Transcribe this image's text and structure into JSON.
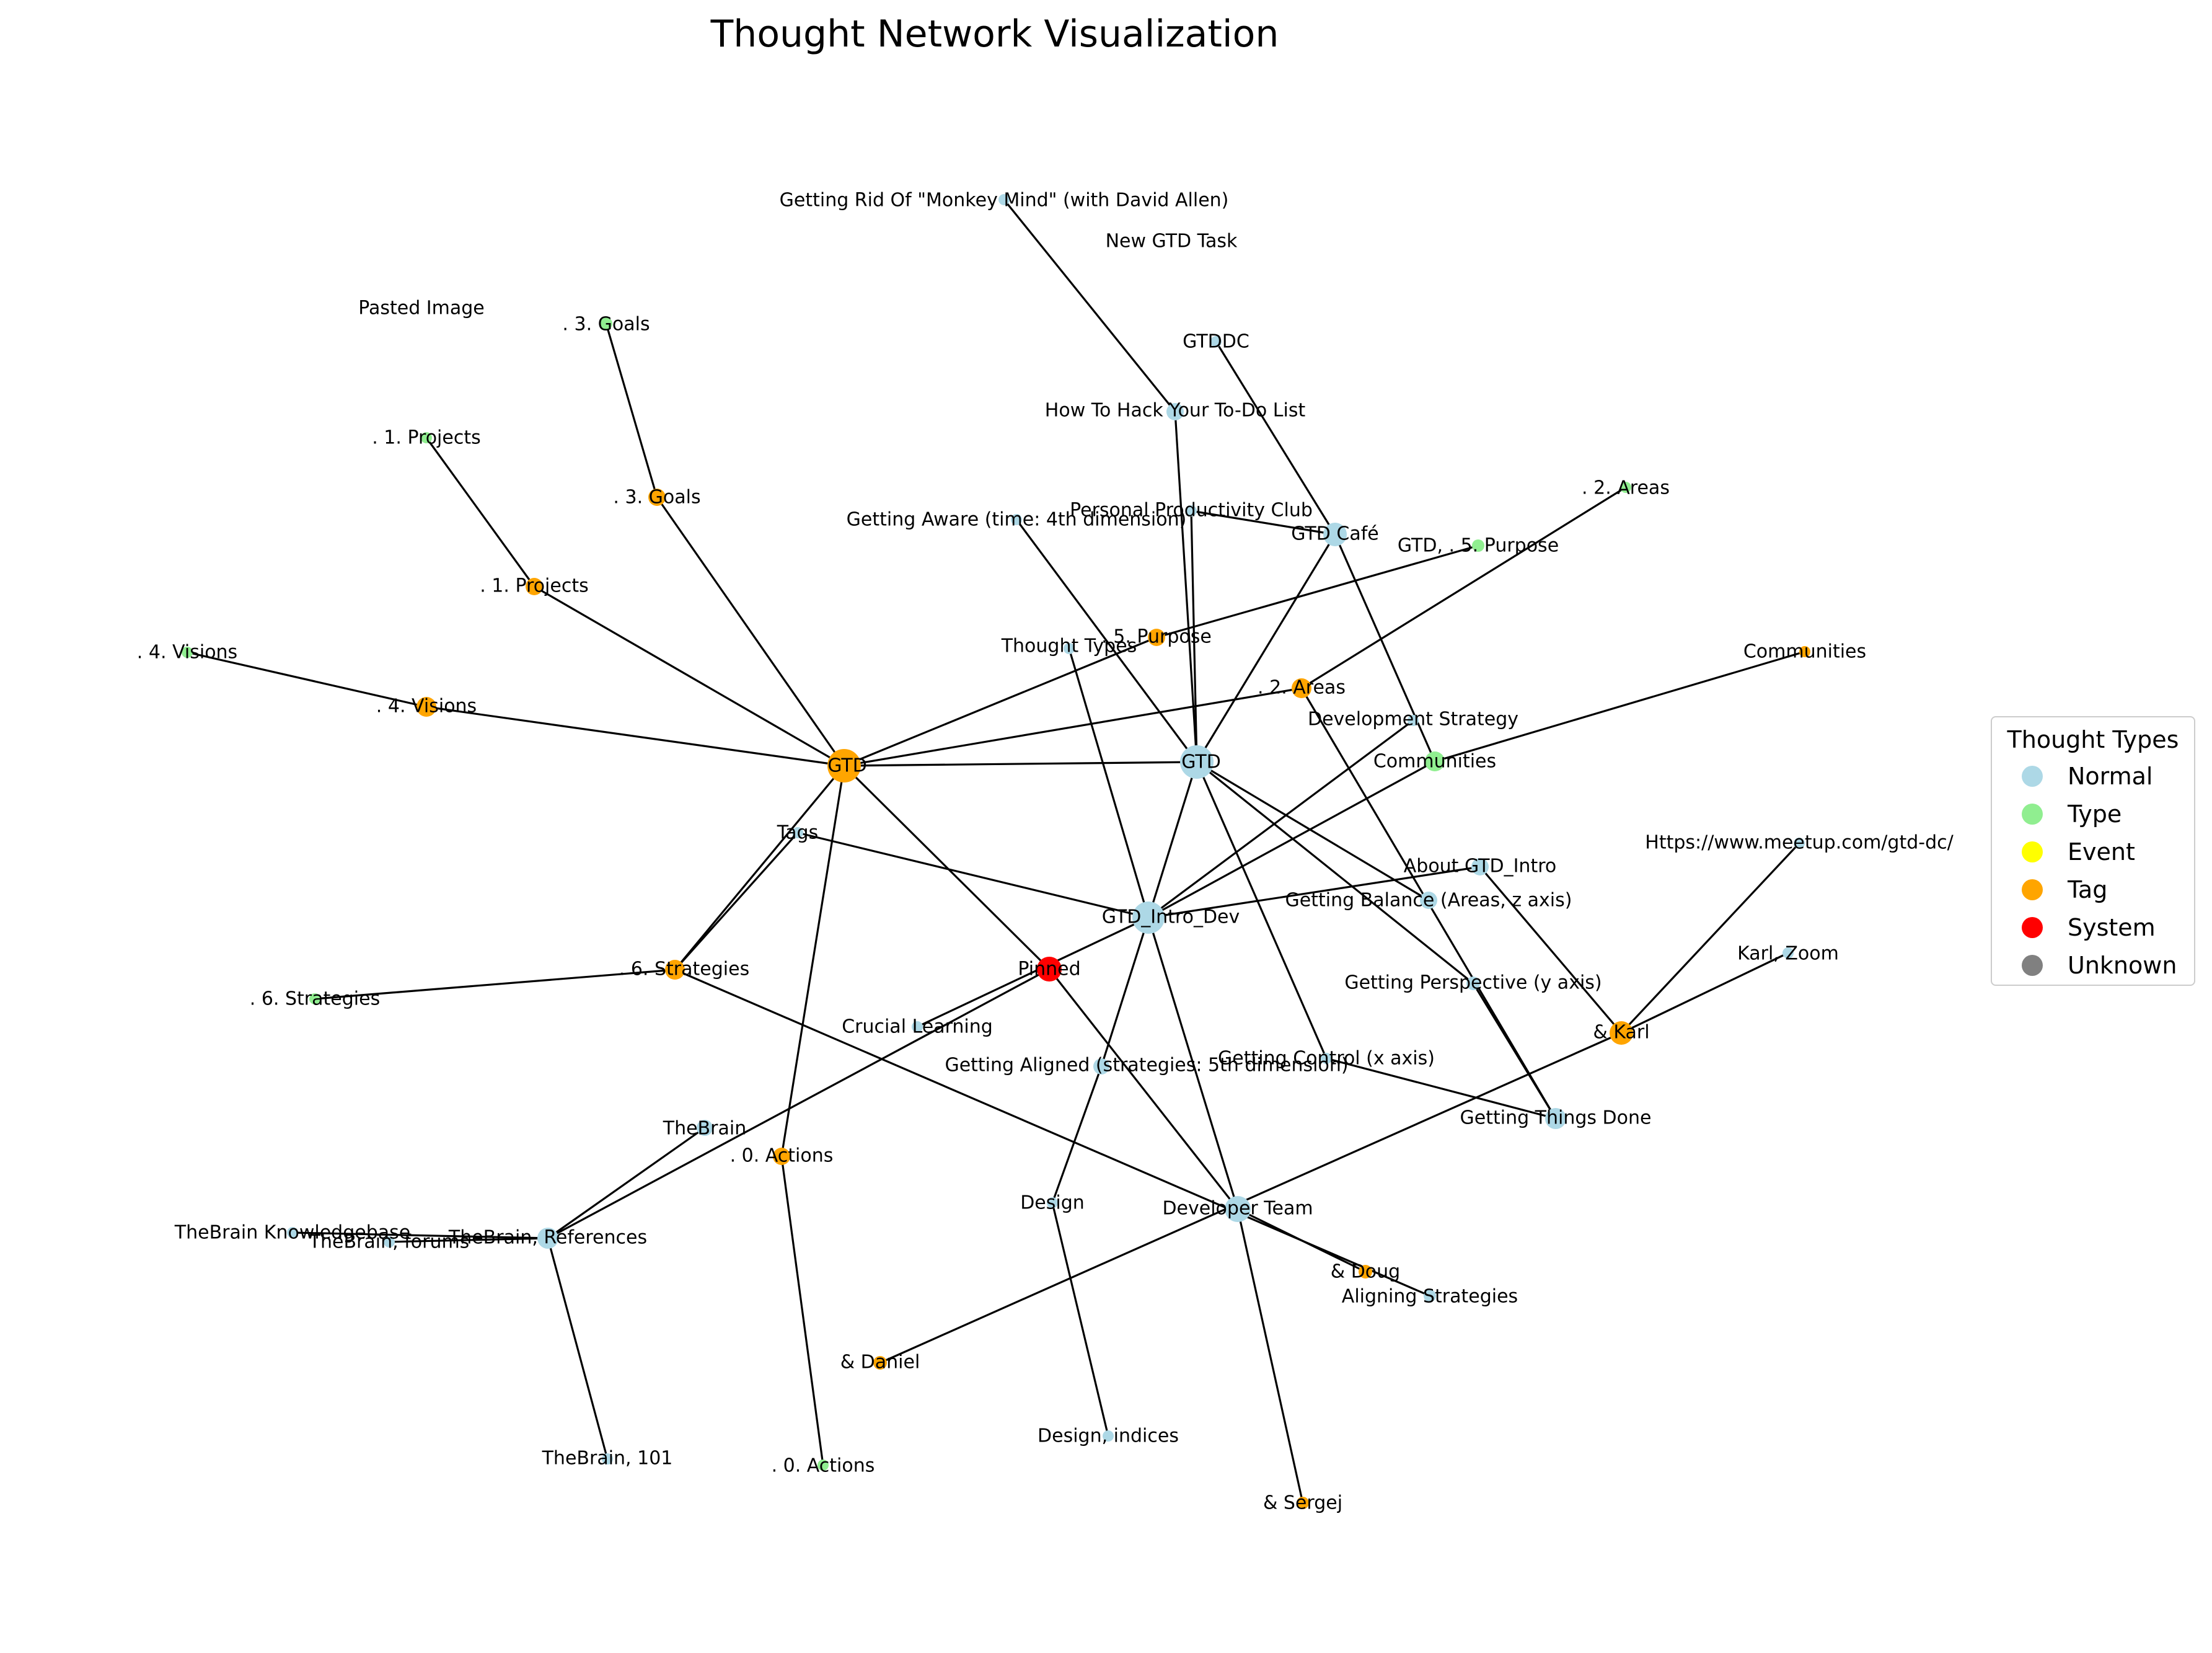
{
  "title": "Thought Network Visualization",
  "legend": {
    "title": "Thought Types",
    "items": [
      {
        "label": "Normal",
        "color": "#add8e6"
      },
      {
        "label": "Type",
        "color": "#90ee90"
      },
      {
        "label": "Event",
        "color": "#ffff00"
      },
      {
        "label": "Tag",
        "color": "#ffa500"
      },
      {
        "label": "System",
        "color": "#ff0000"
      },
      {
        "label": "Unknown",
        "color": "#808080"
      }
    ]
  },
  "network": {
    "nodes": [
      {
        "id": "gtd_tag",
        "label": "GTD",
        "type": "Tag"
      },
      {
        "id": "gtd",
        "label": "GTD",
        "type": "Normal"
      },
      {
        "id": "gtd_intro_dev",
        "label": "GTD_Intro_Dev",
        "type": "Normal"
      },
      {
        "id": "pinned",
        "label": "Pinned",
        "type": "System"
      },
      {
        "id": "developer_team",
        "label": "Developer Team",
        "type": "Normal"
      },
      {
        "id": "gtd_cafe",
        "label": "GTD Café",
        "type": "Normal"
      },
      {
        "id": "communities_type",
        "label": "Communities",
        "type": "Type"
      },
      {
        "id": "communities_tag",
        "label": "Communities",
        "type": "Tag"
      },
      {
        "id": "getting_rid",
        "label": "Getting Rid Of \"Monkey Mind\" (with David Allen)",
        "type": "Normal"
      },
      {
        "id": "new_gtd_task",
        "label": "New GTD Task",
        "type": "Unknown"
      },
      {
        "id": "pasted_image",
        "label": "Pasted Image",
        "type": "Unknown"
      },
      {
        "id": "goals_type",
        "label": ". 3. Goals",
        "type": "Type"
      },
      {
        "id": "goals_tag",
        "label": ". 3. Goals",
        "type": "Tag"
      },
      {
        "id": "projects_type",
        "label": ". 1. Projects",
        "type": "Type"
      },
      {
        "id": "projects_tag",
        "label": ". 1. Projects",
        "type": "Tag"
      },
      {
        "id": "visions_type",
        "label": ". 4. Visions",
        "type": "Type"
      },
      {
        "id": "visions_tag",
        "label": ". 4. Visions",
        "type": "Tag"
      },
      {
        "id": "gtddc",
        "label": "GTDDC",
        "type": "Normal"
      },
      {
        "id": "how_to_hack",
        "label": "How To Hack Your To-Do List",
        "type": "Normal"
      },
      {
        "id": "areas_type",
        "label": ". 2. Areas",
        "type": "Type"
      },
      {
        "id": "areas_tag",
        "label": ". 2. Areas",
        "type": "Tag"
      },
      {
        "id": "personal_productivity",
        "label": "Personal Productivity Club",
        "type": "Normal"
      },
      {
        "id": "getting_aware",
        "label": "Getting Aware (time: 4th dimension)",
        "type": "Normal"
      },
      {
        "id": "purpose_type",
        "label": "GTD, . 5. Purpose",
        "type": "Type"
      },
      {
        "id": "purpose_tag",
        "label": ". 5. Purpose",
        "type": "Tag"
      },
      {
        "id": "thought_types",
        "label": "Thought Types",
        "type": "Normal"
      },
      {
        "id": "development_strategy",
        "label": "Development Strategy",
        "type": "Normal"
      },
      {
        "id": "tags",
        "label": "Tags",
        "type": "Normal"
      },
      {
        "id": "about_gtd_intro",
        "label": "About GTD_Intro",
        "type": "Normal"
      },
      {
        "id": "meetup",
        "label": "Https://www.meetup.com/gtd-dc/",
        "type": "Normal"
      },
      {
        "id": "getting_balance",
        "label": "Getting Balance (Areas, z axis)",
        "type": "Normal"
      },
      {
        "id": "karl_zoom",
        "label": "Karl, Zoom",
        "type": "Normal"
      },
      {
        "id": "strategies_type",
        "label": ". 6. Strategies",
        "type": "Type"
      },
      {
        "id": "strategies_tag",
        "label": ". 6. Strategies",
        "type": "Tag"
      },
      {
        "id": "getting_perspective",
        "label": "Getting Perspective (y axis)",
        "type": "Normal"
      },
      {
        "id": "karl",
        "label": "& Karl",
        "type": "Tag"
      },
      {
        "id": "crucial_learning",
        "label": "Crucial Learning",
        "type": "Normal"
      },
      {
        "id": "getting_aligned",
        "label": "Getting Aligned (strategies: 5th dimension)",
        "type": "Normal"
      },
      {
        "id": "getting_control",
        "label": "Getting Control (x axis)",
        "type": "Normal"
      },
      {
        "id": "getting_things_done",
        "label": "Getting Things Done",
        "type": "Normal"
      },
      {
        "id": "thebrain",
        "label": "TheBrain",
        "type": "Normal"
      },
      {
        "id": "actions_tag",
        "label": ". 0. Actions",
        "type": "Tag"
      },
      {
        "id": "design",
        "label": "Design",
        "type": "Normal"
      },
      {
        "id": "thebrain_kb",
        "label": "TheBrain Knowledgebase",
        "type": "Normal"
      },
      {
        "id": "thebrain_forums",
        "label": "TheBrain, forums",
        "type": "Normal"
      },
      {
        "id": "thebrain_references",
        "label": "TheBrain, References",
        "type": "Normal"
      },
      {
        "id": "doug",
        "label": "& Doug",
        "type": "Tag"
      },
      {
        "id": "aligning_strategies",
        "label": "Aligning Strategies",
        "type": "Normal"
      },
      {
        "id": "daniel",
        "label": "& Daniel",
        "type": "Tag"
      },
      {
        "id": "design_indices",
        "label": "Design, indices",
        "type": "Normal"
      },
      {
        "id": "thebrain_101",
        "label": "TheBrain, 101",
        "type": "Normal"
      },
      {
        "id": "actions_type",
        "label": ". 0. Actions",
        "type": "Type"
      },
      {
        "id": "sergej",
        "label": "& Sergej",
        "type": "Tag"
      }
    ],
    "edges": [
      [
        "gtd_tag",
        "gtd"
      ],
      [
        "gtd_tag",
        "visions_tag"
      ],
      [
        "gtd_tag",
        "projects_tag"
      ],
      [
        "gtd_tag",
        "goals_tag"
      ],
      [
        "gtd_tag",
        "areas_tag"
      ],
      [
        "gtd_tag",
        "purpose_tag"
      ],
      [
        "gtd_tag",
        "strategies_tag"
      ],
      [
        "gtd_tag",
        "actions_tag"
      ],
      [
        "gtd_tag",
        "pinned"
      ],
      [
        "visions_tag",
        "visions_type"
      ],
      [
        "projects_tag",
        "projects_type"
      ],
      [
        "goals_tag",
        "goals_type"
      ],
      [
        "areas_tag",
        "areas_type"
      ],
      [
        "purpose_tag",
        "purpose_type"
      ],
      [
        "strategies_tag",
        "strategies_type"
      ],
      [
        "actions_tag",
        "actions_type"
      ],
      [
        "gtd",
        "gtd_intro_dev"
      ],
      [
        "gtd",
        "gtd_cafe"
      ],
      [
        "gtd",
        "how_to_hack"
      ],
      [
        "gtd",
        "personal_productivity"
      ],
      [
        "gtd",
        "getting_aware"
      ],
      [
        "gtd",
        "getting_balance"
      ],
      [
        "gtd",
        "getting_perspective"
      ],
      [
        "gtd",
        "getting_control"
      ],
      [
        "how_to_hack",
        "getting_rid"
      ],
      [
        "gtd_cafe",
        "gtddc"
      ],
      [
        "gtd_cafe",
        "personal_productivity"
      ],
      [
        "gtd_cafe",
        "communities_type"
      ],
      [
        "communities_type",
        "communities_tag"
      ],
      [
        "communities_type",
        "gtd_intro_dev"
      ],
      [
        "gtd_intro_dev",
        "tags"
      ],
      [
        "gtd_intro_dev",
        "thought_types"
      ],
      [
        "gtd_intro_dev",
        "development_strategy"
      ],
      [
        "gtd_intro_dev",
        "about_gtd_intro"
      ],
      [
        "gtd_intro_dev",
        "developer_team"
      ],
      [
        "gtd_intro_dev",
        "getting_aligned"
      ],
      [
        "gtd_intro_dev",
        "crucial_learning"
      ],
      [
        "tags",
        "strategies_tag"
      ],
      [
        "about_gtd_intro",
        "karl"
      ],
      [
        "karl",
        "meetup"
      ],
      [
        "karl",
        "karl_zoom"
      ],
      [
        "karl",
        "daniel"
      ],
      [
        "getting_perspective",
        "getting_things_done"
      ],
      [
        "areas_tag",
        "getting_things_done"
      ],
      [
        "getting_control",
        "getting_things_done"
      ],
      [
        "strategies_tag",
        "aligning_strategies"
      ],
      [
        "getting_aligned",
        "design"
      ],
      [
        "design",
        "design_indices"
      ],
      [
        "pinned",
        "thebrain_references"
      ],
      [
        "pinned",
        "developer_team"
      ],
      [
        "developer_team",
        "doug"
      ],
      [
        "developer_team",
        "sergej"
      ],
      [
        "thebrain",
        "thebrain_references"
      ],
      [
        "thebrain_references",
        "thebrain_kb"
      ],
      [
        "thebrain_references",
        "thebrain_forums"
      ],
      [
        "thebrain_references",
        "thebrain_101"
      ]
    ]
  }
}
